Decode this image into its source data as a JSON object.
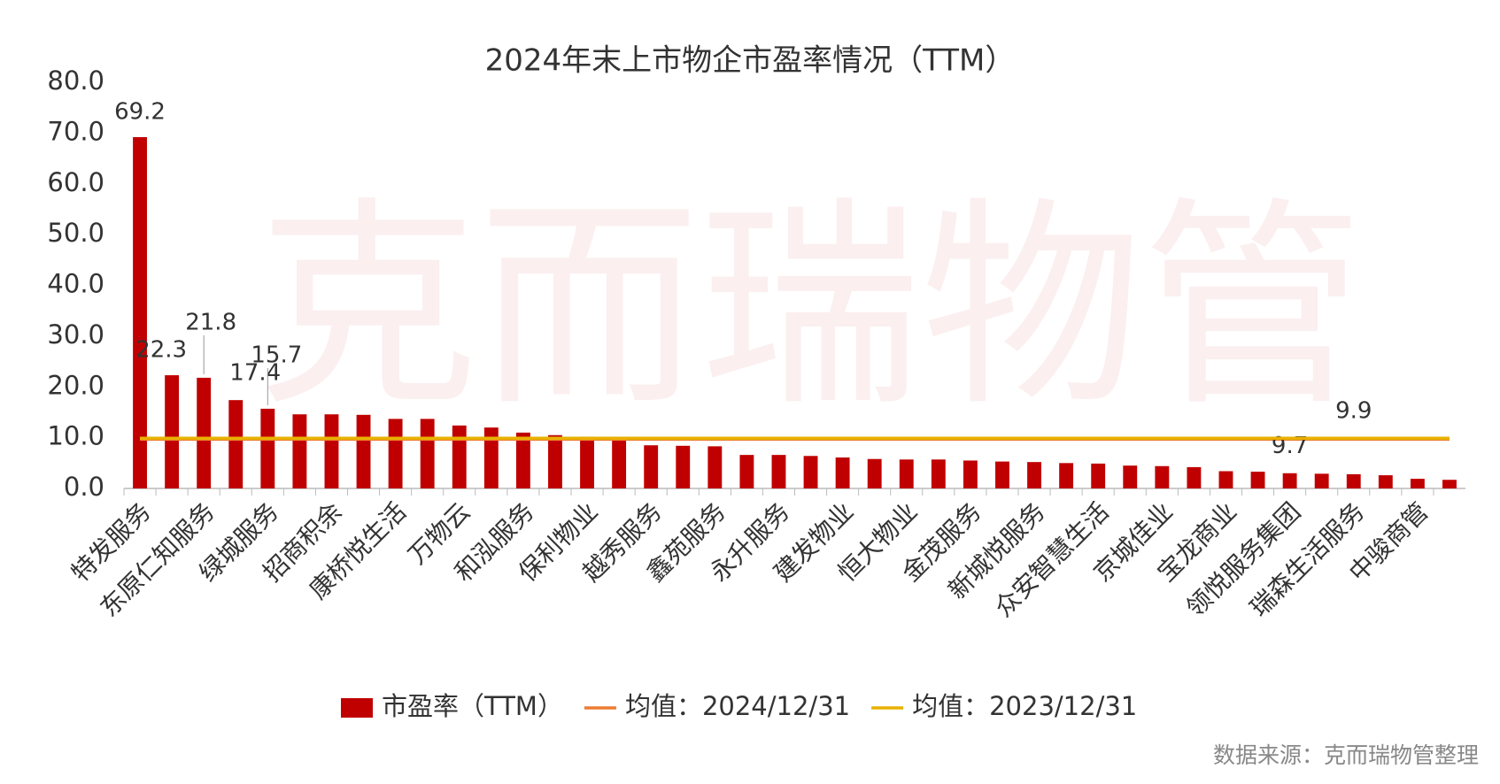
{
  "chart_data": {
    "type": "bar",
    "title": "2024年末上市物企市盈率情况（TTM）",
    "watermark": "克而瑞物管",
    "source": "数据来源：克而瑞物管整理",
    "categories": [
      "特发服务",
      null,
      "东原仁知服务",
      null,
      "绿城服务",
      null,
      "招商积余",
      null,
      "康桥悦生活",
      null,
      "万物云",
      null,
      "和泓服务",
      null,
      "保利物业",
      null,
      "越秀服务",
      null,
      "鑫苑服务",
      null,
      "永升服务",
      null,
      "建发物业",
      null,
      "恒大物业",
      null,
      "金茂服务",
      null,
      "新城悦服务",
      null,
      "众安智慧生活",
      null,
      "京城佳业",
      null,
      "宝龙商业",
      null,
      "领悦服务集团",
      null,
      "瑞森生活服务",
      null,
      "中骏商管",
      null
    ],
    "series": [
      {
        "name": "市盈率（TTM）",
        "color": "#c00000",
        "values": [
          69.2,
          22.3,
          21.8,
          17.4,
          15.7,
          14.6,
          14.6,
          14.5,
          13.7,
          13.7,
          12.4,
          12.0,
          11.0,
          10.5,
          10.2,
          9.5,
          8.5,
          8.4,
          8.3,
          6.6,
          6.6,
          6.4,
          6.1,
          5.8,
          5.7,
          5.7,
          5.5,
          5.3,
          5.2,
          5.0,
          4.9,
          4.5,
          4.4,
          4.2,
          3.4,
          3.3,
          3.0,
          2.9,
          2.8,
          2.6,
          1.9,
          1.7
        ],
        "labeled": [
          69.2,
          22.3,
          21.8,
          17.4,
          15.7
        ]
      }
    ],
    "averages": [
      {
        "name": "均值：2024/12/31",
        "color": "#ed7d31",
        "value": 9.7
      },
      {
        "name": "均值：2023/12/31",
        "color": "#e8b100",
        "value": 9.9
      }
    ],
    "ylim": [
      0,
      80
    ],
    "yticks": [
      {
        "value": 0,
        "label": "0.0"
      },
      {
        "value": 10,
        "label": "10.0"
      },
      {
        "value": 20,
        "label": "20.0"
      },
      {
        "value": 30,
        "label": "30.0"
      },
      {
        "value": 40,
        "label": "40.0"
      },
      {
        "value": 50,
        "label": "50.0"
      },
      {
        "value": 60,
        "label": "60.0"
      },
      {
        "value": 70,
        "label": "70.0"
      },
      {
        "value": 80,
        "label": "80.0"
      }
    ],
    "grid": false
  }
}
